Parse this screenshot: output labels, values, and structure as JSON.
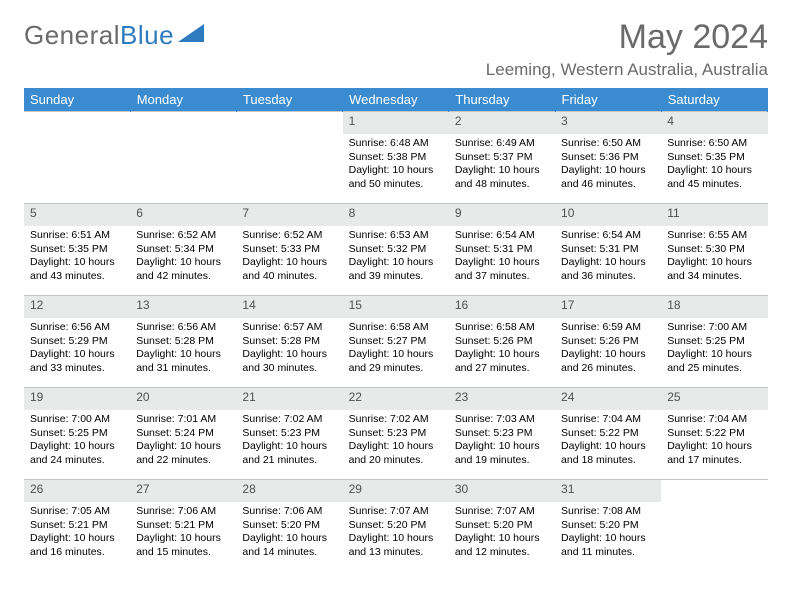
{
  "brand": {
    "part1": "General",
    "part2": "Blue"
  },
  "title": "May 2024",
  "location": "Leeming, Western Australia, Australia",
  "colors": {
    "header_bg": "#3b8bd0",
    "header_text": "#ffffff",
    "daynum_bg": "#e8e9e9",
    "text_gray": "#6a6a6a",
    "border": "#c3c5c6"
  },
  "day_headers": [
    "Sunday",
    "Monday",
    "Tuesday",
    "Wednesday",
    "Thursday",
    "Friday",
    "Saturday"
  ],
  "weeks": [
    {
      "nums": [
        "",
        "",
        "",
        "1",
        "2",
        "3",
        "4"
      ],
      "cells": [
        null,
        null,
        null,
        {
          "sunrise": "Sunrise: 6:48 AM",
          "sunset": "Sunset: 5:38 PM",
          "day1": "Daylight: 10 hours",
          "day2": "and 50 minutes."
        },
        {
          "sunrise": "Sunrise: 6:49 AM",
          "sunset": "Sunset: 5:37 PM",
          "day1": "Daylight: 10 hours",
          "day2": "and 48 minutes."
        },
        {
          "sunrise": "Sunrise: 6:50 AM",
          "sunset": "Sunset: 5:36 PM",
          "day1": "Daylight: 10 hours",
          "day2": "and 46 minutes."
        },
        {
          "sunrise": "Sunrise: 6:50 AM",
          "sunset": "Sunset: 5:35 PM",
          "day1": "Daylight: 10 hours",
          "day2": "and 45 minutes."
        }
      ]
    },
    {
      "nums": [
        "5",
        "6",
        "7",
        "8",
        "9",
        "10",
        "11"
      ],
      "cells": [
        {
          "sunrise": "Sunrise: 6:51 AM",
          "sunset": "Sunset: 5:35 PM",
          "day1": "Daylight: 10 hours",
          "day2": "and 43 minutes."
        },
        {
          "sunrise": "Sunrise: 6:52 AM",
          "sunset": "Sunset: 5:34 PM",
          "day1": "Daylight: 10 hours",
          "day2": "and 42 minutes."
        },
        {
          "sunrise": "Sunrise: 6:52 AM",
          "sunset": "Sunset: 5:33 PM",
          "day1": "Daylight: 10 hours",
          "day2": "and 40 minutes."
        },
        {
          "sunrise": "Sunrise: 6:53 AM",
          "sunset": "Sunset: 5:32 PM",
          "day1": "Daylight: 10 hours",
          "day2": "and 39 minutes."
        },
        {
          "sunrise": "Sunrise: 6:54 AM",
          "sunset": "Sunset: 5:31 PM",
          "day1": "Daylight: 10 hours",
          "day2": "and 37 minutes."
        },
        {
          "sunrise": "Sunrise: 6:54 AM",
          "sunset": "Sunset: 5:31 PM",
          "day1": "Daylight: 10 hours",
          "day2": "and 36 minutes."
        },
        {
          "sunrise": "Sunrise: 6:55 AM",
          "sunset": "Sunset: 5:30 PM",
          "day1": "Daylight: 10 hours",
          "day2": "and 34 minutes."
        }
      ]
    },
    {
      "nums": [
        "12",
        "13",
        "14",
        "15",
        "16",
        "17",
        "18"
      ],
      "cells": [
        {
          "sunrise": "Sunrise: 6:56 AM",
          "sunset": "Sunset: 5:29 PM",
          "day1": "Daylight: 10 hours",
          "day2": "and 33 minutes."
        },
        {
          "sunrise": "Sunrise: 6:56 AM",
          "sunset": "Sunset: 5:28 PM",
          "day1": "Daylight: 10 hours",
          "day2": "and 31 minutes."
        },
        {
          "sunrise": "Sunrise: 6:57 AM",
          "sunset": "Sunset: 5:28 PM",
          "day1": "Daylight: 10 hours",
          "day2": "and 30 minutes."
        },
        {
          "sunrise": "Sunrise: 6:58 AM",
          "sunset": "Sunset: 5:27 PM",
          "day1": "Daylight: 10 hours",
          "day2": "and 29 minutes."
        },
        {
          "sunrise": "Sunrise: 6:58 AM",
          "sunset": "Sunset: 5:26 PM",
          "day1": "Daylight: 10 hours",
          "day2": "and 27 minutes."
        },
        {
          "sunrise": "Sunrise: 6:59 AM",
          "sunset": "Sunset: 5:26 PM",
          "day1": "Daylight: 10 hours",
          "day2": "and 26 minutes."
        },
        {
          "sunrise": "Sunrise: 7:00 AM",
          "sunset": "Sunset: 5:25 PM",
          "day1": "Daylight: 10 hours",
          "day2": "and 25 minutes."
        }
      ]
    },
    {
      "nums": [
        "19",
        "20",
        "21",
        "22",
        "23",
        "24",
        "25"
      ],
      "cells": [
        {
          "sunrise": "Sunrise: 7:00 AM",
          "sunset": "Sunset: 5:25 PM",
          "day1": "Daylight: 10 hours",
          "day2": "and 24 minutes."
        },
        {
          "sunrise": "Sunrise: 7:01 AM",
          "sunset": "Sunset: 5:24 PM",
          "day1": "Daylight: 10 hours",
          "day2": "and 22 minutes."
        },
        {
          "sunrise": "Sunrise: 7:02 AM",
          "sunset": "Sunset: 5:23 PM",
          "day1": "Daylight: 10 hours",
          "day2": "and 21 minutes."
        },
        {
          "sunrise": "Sunrise: 7:02 AM",
          "sunset": "Sunset: 5:23 PM",
          "day1": "Daylight: 10 hours",
          "day2": "and 20 minutes."
        },
        {
          "sunrise": "Sunrise: 7:03 AM",
          "sunset": "Sunset: 5:23 PM",
          "day1": "Daylight: 10 hours",
          "day2": "and 19 minutes."
        },
        {
          "sunrise": "Sunrise: 7:04 AM",
          "sunset": "Sunset: 5:22 PM",
          "day1": "Daylight: 10 hours",
          "day2": "and 18 minutes."
        },
        {
          "sunrise": "Sunrise: 7:04 AM",
          "sunset": "Sunset: 5:22 PM",
          "day1": "Daylight: 10 hours",
          "day2": "and 17 minutes."
        }
      ]
    },
    {
      "nums": [
        "26",
        "27",
        "28",
        "29",
        "30",
        "31",
        ""
      ],
      "cells": [
        {
          "sunrise": "Sunrise: 7:05 AM",
          "sunset": "Sunset: 5:21 PM",
          "day1": "Daylight: 10 hours",
          "day2": "and 16 minutes."
        },
        {
          "sunrise": "Sunrise: 7:06 AM",
          "sunset": "Sunset: 5:21 PM",
          "day1": "Daylight: 10 hours",
          "day2": "and 15 minutes."
        },
        {
          "sunrise": "Sunrise: 7:06 AM",
          "sunset": "Sunset: 5:20 PM",
          "day1": "Daylight: 10 hours",
          "day2": "and 14 minutes."
        },
        {
          "sunrise": "Sunrise: 7:07 AM",
          "sunset": "Sunset: 5:20 PM",
          "day1": "Daylight: 10 hours",
          "day2": "and 13 minutes."
        },
        {
          "sunrise": "Sunrise: 7:07 AM",
          "sunset": "Sunset: 5:20 PM",
          "day1": "Daylight: 10 hours",
          "day2": "and 12 minutes."
        },
        {
          "sunrise": "Sunrise: 7:08 AM",
          "sunset": "Sunset: 5:20 PM",
          "day1": "Daylight: 10 hours",
          "day2": "and 11 minutes."
        },
        null
      ]
    }
  ]
}
